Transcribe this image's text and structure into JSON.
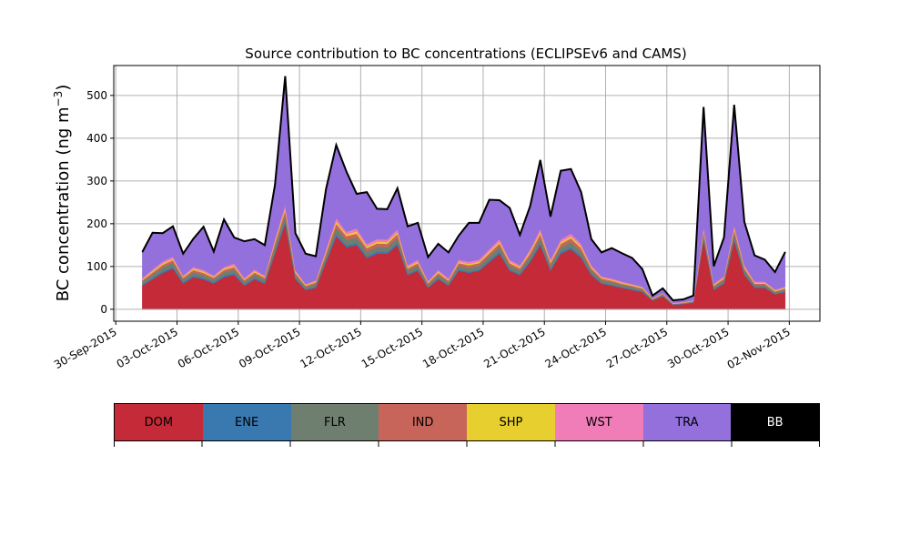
{
  "chart_data": {
    "type": "area",
    "title": "Source contribution to BC concentrations (ECLIPSEv6 and CAMS)",
    "ylabel": "BC concentration (ng m",
    "ylabel_sup": "−3",
    "ylabel_close": ")",
    "xlabel": "",
    "x_tick_labels": [
      "30-Sep-2015",
      "03-Oct-2015",
      "06-Oct-2015",
      "09-Oct-2015",
      "12-Oct-2015",
      "15-Oct-2015",
      "18-Oct-2015",
      "21-Oct-2015",
      "24-Oct-2015",
      "27-Oct-2015",
      "30-Oct-2015",
      "02-Nov-2015"
    ],
    "y_ticks": [
      0,
      100,
      200,
      300,
      400,
      500
    ],
    "ylim": [
      -28,
      570
    ],
    "xlim_days_label": "2015-09-30 to 2015-11-02",
    "grid": true,
    "stacked": true,
    "x": [
      "2015-10-01",
      "2015-10-01T12",
      "2015-10-02",
      "2015-10-02T12",
      "2015-10-03",
      "2015-10-03T12",
      "2015-10-04",
      "2015-10-04T12",
      "2015-10-05",
      "2015-10-05T12",
      "2015-10-06",
      "2015-10-06T12",
      "2015-10-07",
      "2015-10-07T12",
      "2015-10-08",
      "2015-10-08T12",
      "2015-10-09",
      "2015-10-09T12",
      "2015-10-10",
      "2015-10-10T12",
      "2015-10-11",
      "2015-10-11T12",
      "2015-10-12",
      "2015-10-12T12",
      "2015-10-13",
      "2015-10-13T12",
      "2015-10-14",
      "2015-10-14T12",
      "2015-10-15",
      "2015-10-15T12",
      "2015-10-16",
      "2015-10-16T12",
      "2015-10-17",
      "2015-10-17T12",
      "2015-10-18",
      "2015-10-18T12",
      "2015-10-19",
      "2015-10-19T12",
      "2015-10-20",
      "2015-10-20T12",
      "2015-10-21",
      "2015-10-21T12",
      "2015-10-22",
      "2015-10-22T12",
      "2015-10-23",
      "2015-10-23T12",
      "2015-10-24",
      "2015-10-24T12",
      "2015-10-25",
      "2015-10-25T12",
      "2015-10-26",
      "2015-10-26T12",
      "2015-10-27",
      "2015-10-27T12",
      "2015-10-28",
      "2015-10-28T12",
      "2015-10-29",
      "2015-10-29T12",
      "2015-10-30",
      "2015-10-30T12",
      "2015-10-31",
      "2015-10-31T12",
      "2015-11-01",
      "2015-11-01T12"
    ],
    "series": [
      {
        "name": "DOM",
        "color": "#c42a37",
        "values": [
          55,
          70,
          85,
          95,
          60,
          75,
          70,
          60,
          75,
          80,
          55,
          70,
          60,
          130,
          200,
          70,
          45,
          50,
          110,
          170,
          145,
          150,
          120,
          130,
          130,
          150,
          80,
          90,
          50,
          70,
          55,
          90,
          85,
          90,
          110,
          130,
          90,
          80,
          110,
          150,
          90,
          130,
          140,
          120,
          80,
          60,
          55,
          50,
          45,
          40,
          20,
          30,
          10,
          12,
          15,
          160,
          45,
          60,
          160,
          80,
          50,
          50,
          35,
          40
        ]
      },
      {
        "name": "ENE",
        "color": "#3a78b0",
        "values": [
          3,
          3,
          4,
          4,
          3,
          4,
          3,
          3,
          4,
          4,
          3,
          3,
          3,
          5,
          6,
          3,
          2,
          3,
          4,
          6,
          5,
          5,
          4,
          5,
          4,
          5,
          3,
          3,
          2,
          3,
          2,
          3,
          3,
          3,
          4,
          5,
          3,
          3,
          4,
          5,
          3,
          4,
          5,
          4,
          3,
          2,
          2,
          2,
          2,
          2,
          1,
          1,
          1,
          1,
          1,
          4,
          2,
          2,
          5,
          3,
          2,
          2,
          1,
          2
        ]
      },
      {
        "name": "FLR",
        "color": "#6f7f6f",
        "values": [
          6,
          8,
          9,
          10,
          7,
          8,
          7,
          7,
          8,
          9,
          6,
          8,
          7,
          12,
          15,
          7,
          5,
          6,
          10,
          14,
          12,
          13,
          11,
          11,
          11,
          12,
          8,
          9,
          5,
          7,
          6,
          9,
          9,
          9,
          10,
          11,
          9,
          8,
          10,
          12,
          9,
          11,
          12,
          11,
          8,
          6,
          6,
          5,
          5,
          4,
          2,
          3,
          1,
          1,
          2,
          10,
          5,
          6,
          12,
          8,
          5,
          5,
          4,
          4
        ]
      },
      {
        "name": "IND",
        "color": "#c8655a",
        "values": [
          4,
          5,
          6,
          6,
          4,
          5,
          5,
          4,
          5,
          6,
          4,
          5,
          4,
          8,
          10,
          5,
          3,
          4,
          7,
          10,
          9,
          9,
          8,
          8,
          8,
          9,
          5,
          6,
          4,
          5,
          4,
          6,
          6,
          6,
          7,
          8,
          6,
          5,
          7,
          9,
          6,
          8,
          9,
          8,
          5,
          4,
          4,
          3,
          3,
          3,
          1,
          2,
          1,
          1,
          1,
          8,
          3,
          4,
          9,
          5,
          3,
          3,
          2,
          3
        ]
      },
      {
        "name": "SHP",
        "color": "#e6cf2e",
        "values": [
          2,
          3,
          3,
          3,
          2,
          3,
          3,
          2,
          3,
          3,
          2,
          3,
          2,
          4,
          5,
          3,
          2,
          2,
          4,
          5,
          4,
          5,
          4,
          4,
          4,
          4,
          3,
          3,
          2,
          3,
          2,
          3,
          3,
          3,
          4,
          4,
          3,
          3,
          4,
          5,
          3,
          4,
          4,
          4,
          3,
          2,
          2,
          2,
          2,
          2,
          1,
          1,
          1,
          1,
          1,
          4,
          2,
          2,
          4,
          3,
          2,
          2,
          2,
          2
        ]
      },
      {
        "name": "WST",
        "color": "#f07db7",
        "values": [
          3,
          4,
          5,
          5,
          3,
          4,
          4,
          3,
          4,
          5,
          3,
          4,
          3,
          6,
          8,
          4,
          2,
          3,
          5,
          8,
          6,
          7,
          6,
          6,
          6,
          7,
          4,
          5,
          3,
          4,
          3,
          5,
          5,
          5,
          5,
          6,
          5,
          4,
          5,
          7,
          5,
          6,
          7,
          6,
          4,
          3,
          3,
          3,
          2,
          2,
          1,
          1,
          1,
          1,
          1,
          6,
          3,
          3,
          7,
          4,
          3,
          3,
          2,
          2
        ]
      },
      {
        "name": "TRA",
        "color": "#9370db",
        "values": [
          60,
          85,
          65,
          70,
          50,
          65,
          100,
          55,
          110,
          60,
          85,
          70,
          70,
          125,
          300,
          85,
          70,
          55,
          140,
          170,
          140,
          80,
          120,
          70,
          70,
          95,
          90,
          85,
          55,
          60,
          60,
          55,
          90,
          85,
          115,
          90,
          120,
          70,
          100,
          160,
          100,
          160,
          150,
          120,
          60,
          55,
          70,
          65,
          60,
          40,
          5,
          10,
          5,
          5,
          10,
          280,
          40,
          90,
          280,
          100,
          60,
          50,
          40,
          80
        ]
      },
      {
        "name": "BB",
        "color": "#000000",
        "values": [
          1,
          1,
          1,
          1,
          1,
          1,
          1,
          1,
          1,
          1,
          1,
          1,
          1,
          1,
          1,
          1,
          1,
          1,
          1,
          1,
          1,
          1,
          1,
          1,
          1,
          1,
          1,
          1,
          1,
          1,
          1,
          1,
          1,
          1,
          1,
          1,
          1,
          1,
          1,
          1,
          1,
          1,
          1,
          1,
          1,
          1,
          1,
          1,
          1,
          1,
          1,
          1,
          1,
          1,
          1,
          1,
          1,
          1,
          1,
          1,
          1,
          1,
          1,
          1
        ]
      }
    ]
  },
  "legend": {
    "items": [
      {
        "label": "DOM",
        "color": "#c42a37",
        "text_color": "#000000"
      },
      {
        "label": "ENE",
        "color": "#3a78b0",
        "text_color": "#000000"
      },
      {
        "label": "FLR",
        "color": "#6f7f6f",
        "text_color": "#000000"
      },
      {
        "label": "IND",
        "color": "#c8655a",
        "text_color": "#000000"
      },
      {
        "label": "SHP",
        "color": "#e6cf2e",
        "text_color": "#000000"
      },
      {
        "label": "WST",
        "color": "#f07db7",
        "text_color": "#000000"
      },
      {
        "label": "TRA",
        "color": "#9370db",
        "text_color": "#000000"
      },
      {
        "label": "BB",
        "color": "#000000",
        "text_color": "#ffffff"
      }
    ]
  }
}
